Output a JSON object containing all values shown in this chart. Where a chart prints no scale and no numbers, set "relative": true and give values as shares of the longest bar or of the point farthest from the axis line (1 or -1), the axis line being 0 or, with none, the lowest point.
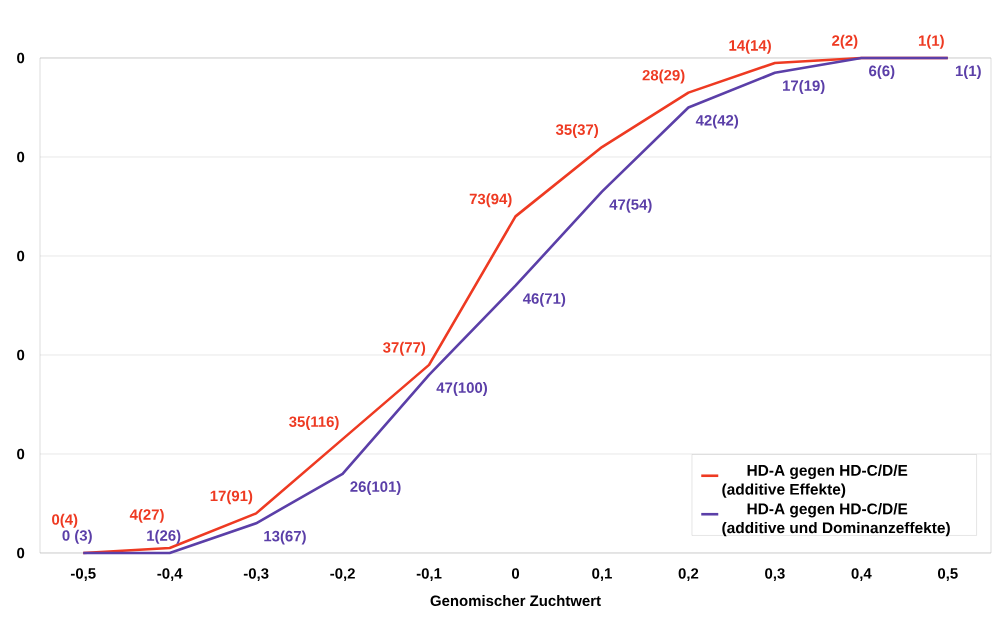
{
  "chart_data": {
    "type": "line",
    "xlabel": "Genomischer Zuchtwert",
    "relative": true,
    "categories": [
      "-0,5",
      "-0,4",
      "-0,3",
      "-0,2",
      "-0,1",
      "0",
      "0,1",
      "0,2",
      "0,3",
      "0,4",
      "0,5"
    ],
    "annotations": [
      "0",
      "0",
      "0",
      "0",
      "0",
      "0",
      {
        "text": "0(4)",
        "x": "-0,5",
        "y": 0
      },
      {
        "text": "4(27)",
        "x": "-0,4",
        "y": 0.01
      },
      {
        "text": "17(91)",
        "x": "-0,3",
        "y": 0.08
      },
      {
        "text": "35(116)",
        "x": "-0,2",
        "y": 0.23
      },
      {
        "text": "37(77)",
        "x": "-0,1",
        "y": 0.38
      },
      {
        "text": "73(94)",
        "x": "0",
        "y": 0.68
      },
      {
        "text": "35(37)",
        "x": "0,1",
        "y": 0.82
      },
      {
        "text": "28(29)",
        "x": "0,2",
        "y": 0.93
      },
      {
        "text": "14(14)",
        "x": "0,3",
        "y": 0.99
      },
      {
        "text": "2(2)",
        "x": "0,4",
        "y": 1
      },
      {
        "text": "1(1)",
        "x": "0,5",
        "y": 1
      },
      {
        "text": "0 (3)",
        "x": "-0,5",
        "y": 0
      },
      {
        "text": "1(26)",
        "x": "-0,4",
        "y": 0
      },
      {
        "text": "13(67)",
        "x": "-0,3",
        "y": 0.06
      },
      {
        "text": "26(101)",
        "x": "-0,2",
        "y": 0.16
      },
      {
        "text": "47(100)",
        "x": "-0,1",
        "y": 0.36
      },
      {
        "text": "46(71)",
        "x": "0",
        "y": 0.54
      },
      {
        "text": "47(54)",
        "x": "0,1",
        "y": 0.73
      },
      {
        "text": "42(42)",
        "x": "0,2",
        "y": 0.9
      },
      {
        "text": "17(19)",
        "x": "0,3",
        "y": 0.97
      },
      {
        "text": "6(6)",
        "x": "0,4",
        "y": 1
      },
      {
        "text": "1(1)",
        "x": "0,5",
        "y": 1
      }
    ],
    "grid": "y",
    "legend": "bottom right",
    "marker": "none",
    "line_style": "solid",
    "series": [
      {
        "name": "HD-A gegen HD-C/D/E (additive Effekte)",
        "color": "#ee3a22",
        "values": [
          0,
          0.01,
          0.08,
          0.23,
          0.38,
          0.68,
          0.82,
          0.93,
          0.99,
          1,
          1
        ]
      },
      {
        "name": "HD-A gegen HD-C/D/E (additive und Dominanzeffekte)",
        "color": "#5b3fa8",
        "values": [
          0,
          0,
          0.06,
          0.16,
          0.36,
          0.54,
          0.73,
          0.9,
          0.97,
          1,
          1
        ]
      }
    ]
  }
}
